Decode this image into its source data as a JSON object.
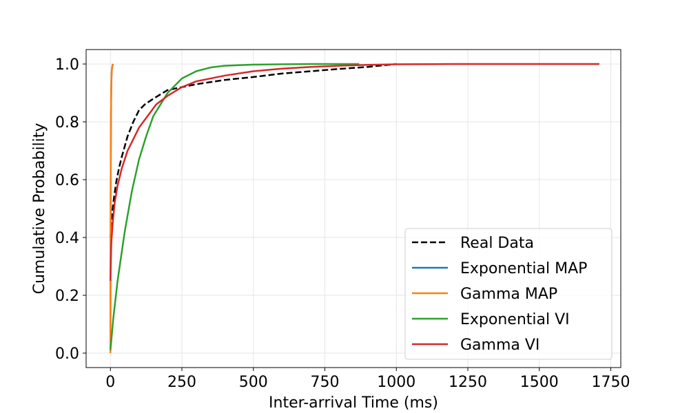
{
  "chart_data": {
    "type": "line",
    "title": "",
    "xlabel": "Inter-arrival Time (ms)",
    "ylabel": "Cumulative Probability",
    "xlim": [
      -85,
      1785
    ],
    "ylim": [
      -0.05,
      1.05
    ],
    "xticks": [
      0,
      250,
      500,
      750,
      1000,
      1250,
      1500,
      1750
    ],
    "yticks": [
      0.0,
      0.2,
      0.4,
      0.6,
      0.8,
      1.0
    ],
    "xtick_labels": [
      "0",
      "250",
      "500",
      "750",
      "1000",
      "1250",
      "1500",
      "1750"
    ],
    "ytick_labels": [
      "0.0",
      "0.2",
      "0.4",
      "0.6",
      "0.8",
      "1.0"
    ],
    "grid": true,
    "legend_position": "lower-right",
    "series": [
      {
        "name": "Real Data",
        "color": "#000000",
        "dash": true,
        "x": [
          0,
          5,
          10,
          20,
          30,
          40,
          60,
          80,
          100,
          120,
          150,
          200,
          250,
          300,
          400,
          500,
          600,
          700,
          800,
          900,
          1000
        ],
        "y": [
          0.4,
          0.47,
          0.52,
          0.59,
          0.64,
          0.68,
          0.75,
          0.8,
          0.84,
          0.86,
          0.88,
          0.91,
          0.92,
          0.93,
          0.945,
          0.955,
          0.967,
          0.975,
          0.983,
          0.99,
          1.0
        ]
      },
      {
        "name": "Exponential MAP",
        "color": "#1f77b4",
        "dash": false,
        "x": [
          0,
          0.5,
          1,
          2,
          3,
          4,
          5,
          7,
          9
        ],
        "y": [
          0.0,
          0.35,
          0.58,
          0.82,
          0.92,
          0.96,
          0.98,
          0.995,
          1.0
        ]
      },
      {
        "name": "Gamma MAP",
        "color": "#ff7f0e",
        "dash": false,
        "x": [
          0,
          0.5,
          1,
          2,
          3,
          4,
          6,
          8,
          10
        ],
        "y": [
          0.0,
          0.4,
          0.62,
          0.84,
          0.93,
          0.97,
          0.99,
          0.997,
          1.0
        ]
      },
      {
        "name": "Exponential VI",
        "color": "#2ca02c",
        "dash": false,
        "x": [
          0,
          10,
          25,
          50,
          75,
          100,
          125,
          150,
          175,
          200,
          250,
          300,
          350,
          400,
          500,
          600,
          700,
          870
        ],
        "y": [
          0.01,
          0.12,
          0.25,
          0.42,
          0.56,
          0.67,
          0.75,
          0.82,
          0.86,
          0.9,
          0.95,
          0.975,
          0.988,
          0.994,
          0.998,
          0.999,
          1.0,
          1.0
        ]
      },
      {
        "name": "Gamma VI",
        "color": "#d62728",
        "dash": false,
        "x": [
          0,
          3,
          8,
          15,
          25,
          40,
          60,
          80,
          100,
          130,
          160,
          200,
          250,
          300,
          400,
          500,
          600,
          700,
          800,
          900,
          1000,
          1200,
          1400,
          1710
        ],
        "y": [
          0.25,
          0.38,
          0.45,
          0.52,
          0.58,
          0.64,
          0.7,
          0.74,
          0.78,
          0.82,
          0.86,
          0.89,
          0.92,
          0.94,
          0.96,
          0.975,
          0.984,
          0.99,
          0.994,
          0.997,
          0.999,
          1.0,
          1.0,
          1.0
        ]
      }
    ]
  }
}
